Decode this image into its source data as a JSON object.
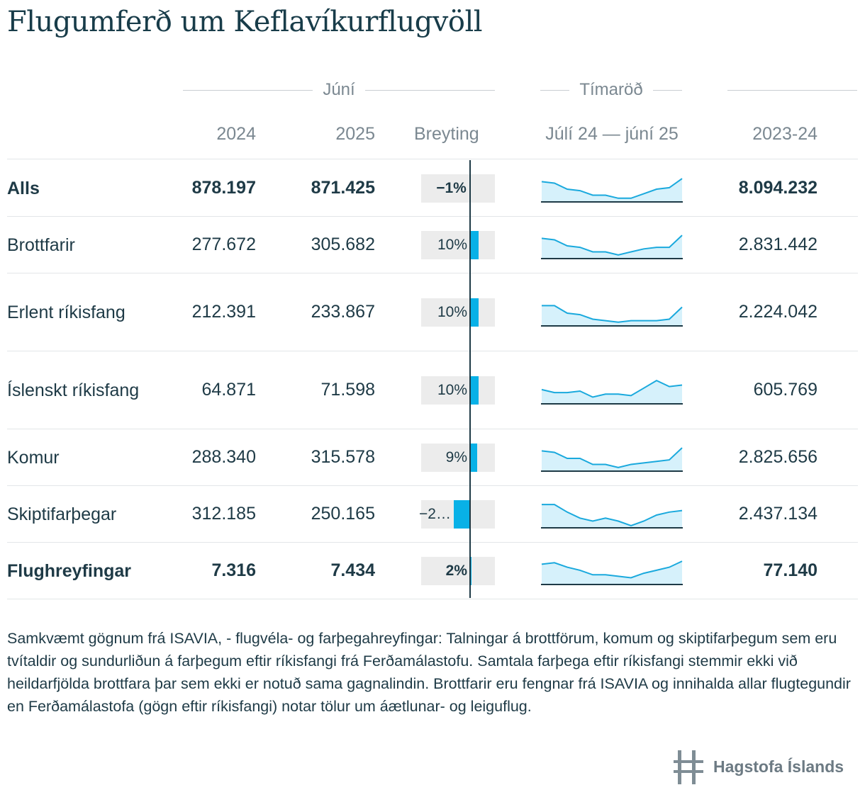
{
  "title": "Flugumferð um Keflavíkurflugvöll",
  "groups": {
    "june": "Júní",
    "timeseries": "Tímaröð"
  },
  "columns": {
    "y2024": "2024",
    "y2025": "2025",
    "change": "Breyting",
    "series": "Júlí 24 — júní 25",
    "year": "2023-24"
  },
  "chart_data": {
    "type": "table",
    "axis_range_percent": [
      -60,
      60
    ],
    "colors": {
      "bar": "#08b1e7",
      "bar_bg": "#ececec",
      "spark_line": "#1aa9dd",
      "spark_fill": "#d6f1fb",
      "text": "#1e3a46"
    },
    "rows": [
      {
        "label": "Alls",
        "bold": true,
        "v2024": "878.197",
        "v2025": "871.425",
        "change": -1,
        "change_label": "−1%",
        "year_total": "8.094.232",
        "series": [
          13,
          12,
          8,
          7,
          4,
          4,
          2,
          2,
          5,
          8,
          9,
          15
        ]
      },
      {
        "label": "Brottfarir",
        "bold": false,
        "v2024": "277.672",
        "v2025": "305.682",
        "change": 10,
        "change_label": "10%",
        "year_total": "2.831.442",
        "series": [
          13,
          12,
          8,
          7,
          4,
          4,
          2,
          4,
          6,
          7,
          7,
          15
        ]
      },
      {
        "label": "Erlent ríkisfang",
        "bold": false,
        "v2024": "212.391",
        "v2025": "233.867",
        "change": 10,
        "change_label": "10%",
        "year_total": "2.224.042",
        "series": [
          13,
          13,
          8,
          7,
          4,
          3,
          2,
          3,
          3,
          3,
          4,
          12
        ]
      },
      {
        "label": "Íslenskt ríkisfang",
        "bold": false,
        "v2024": "64.871",
        "v2025": "71.598",
        "change": 10,
        "change_label": "10%",
        "year_total": "605.769",
        "series": [
          9,
          7,
          7,
          8,
          4,
          6,
          6,
          5,
          10,
          15,
          11,
          12
        ]
      },
      {
        "label": "Komur",
        "bold": false,
        "v2024": "288.340",
        "v2025": "315.578",
        "change": 9,
        "change_label": "9%",
        "year_total": "2.825.656",
        "series": [
          13,
          12,
          8,
          8,
          4,
          4,
          2,
          4,
          5,
          6,
          7,
          15
        ]
      },
      {
        "label": "Skiptifarþegar",
        "bold": false,
        "v2024": "312.185",
        "v2025": "250.165",
        "change": -20,
        "change_label": "−2…",
        "year_total": "2.437.134",
        "series": [
          15,
          15,
          10,
          6,
          4,
          6,
          4,
          1,
          4,
          8,
          10,
          11
        ]
      },
      {
        "label": "Flughreyfingar",
        "bold": true,
        "v2024": "7.316",
        "v2025": "7.434",
        "change": 2,
        "change_label": "2%",
        "year_total": "77.140",
        "series": [
          13,
          14,
          11,
          9,
          6,
          6,
          5,
          4,
          7,
          9,
          11,
          15
        ]
      }
    ]
  },
  "footnote": "Samkvæmt gögnum frá ISAVIA, - flugvéla- og farþegahreyfingar: Talningar á brottförum, komum og skiptifarþegum sem eru tvítaldir og sundurliðun á farþegum eftir ríkisfangi frá Ferðamálastofu. Samtala farþega eftir ríkisfangi stemmir ekki við heildarfjölda brottfara þar sem ekki er notuð sama gagnalindin. Brottfarir eru fengnar frá ISAVIA og innihalda allar flugtegundir en Ferðamálastofa (gögn eftir ríkisfangi) notar tölur um áætlunar- og leiguflug.",
  "logo": {
    "text": "Hagstofa Íslands",
    "icon": "hagstofa-logo-icon"
  }
}
